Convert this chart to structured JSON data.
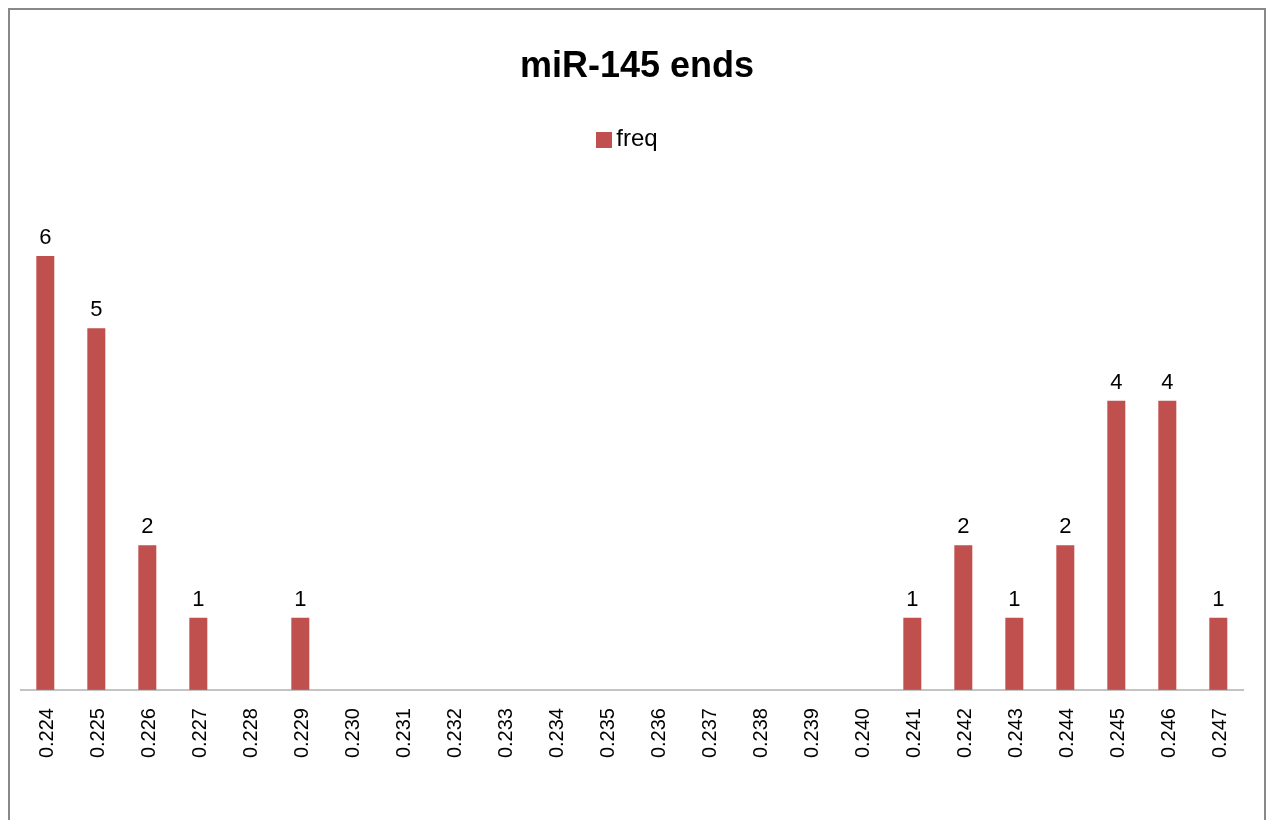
{
  "chart_data": {
    "type": "bar",
    "title": "miR-145 ends",
    "categories": [
      "0.224",
      "0.225",
      "0.226",
      "0.227",
      "0.228",
      "0.229",
      "0.230",
      "0.231",
      "0.232",
      "0.233",
      "0.234",
      "0.235",
      "0.236",
      "0.237",
      "0.238",
      "0.239",
      "0.240",
      "0.241",
      "0.242",
      "0.243",
      "0.244",
      "0.245",
      "0.246",
      "0.247"
    ],
    "series": [
      {
        "name": "freq",
        "color": "#c0504d",
        "values": [
          6,
          5,
          2,
          1,
          0,
          1,
          0,
          0,
          0,
          0,
          0,
          0,
          0,
          0,
          0,
          0,
          0,
          1,
          2,
          1,
          2,
          4,
          4,
          1
        ],
        "value_labels": [
          "6",
          "5",
          "2",
          "1",
          null,
          "1",
          null,
          null,
          null,
          null,
          null,
          null,
          null,
          null,
          null,
          null,
          null,
          "1",
          "2",
          "1",
          "2",
          "4",
          "4",
          "1"
        ]
      }
    ],
    "legend": "top",
    "grid": false
  }
}
